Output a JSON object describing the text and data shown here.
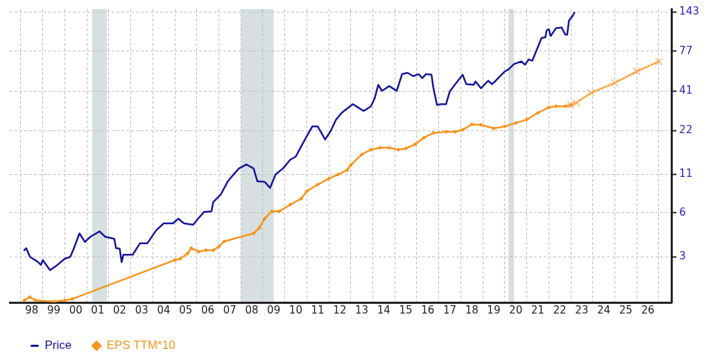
{
  "chart_data": {
    "type": "line",
    "log": true,
    "grid": true,
    "legend": "bottom left",
    "xlim": [
      "1997-07",
      "2027-08"
    ],
    "xticks": [
      {
        "value": "1998",
        "label": null
      },
      {
        "value": "1998-07",
        "label": "98"
      },
      {
        "value": "1999",
        "label": null
      },
      {
        "value": "1999-07",
        "label": "99"
      },
      {
        "value": "2000",
        "label": null
      },
      {
        "value": "2000-07",
        "label": "00"
      },
      {
        "value": "2001",
        "label": null
      },
      {
        "value": "2001-07",
        "label": "01"
      },
      {
        "value": "2002",
        "label": null
      },
      {
        "value": "2002-07",
        "label": "02"
      },
      {
        "value": "2003",
        "label": null
      },
      {
        "value": "2003-07",
        "label": "03"
      },
      {
        "value": "2004",
        "label": null
      },
      {
        "value": "2004-07",
        "label": "04"
      },
      {
        "value": "2005",
        "label": null
      },
      {
        "value": "2005-07",
        "label": "05"
      },
      {
        "value": "2006",
        "label": null
      },
      {
        "value": "2006-07",
        "label": "06"
      },
      {
        "value": "2007",
        "label": null
      },
      {
        "value": "2007-07",
        "label": "07"
      },
      {
        "value": "2008",
        "label": null
      },
      {
        "value": "2008-07",
        "label": "08"
      },
      {
        "value": "2009",
        "label": null
      },
      {
        "value": "2009-07",
        "label": "09"
      },
      {
        "value": "2010",
        "label": null
      },
      {
        "value": "2010-07",
        "label": "10"
      },
      {
        "value": "2011",
        "label": null
      },
      {
        "value": "2011-07",
        "label": "11"
      },
      {
        "value": "2012",
        "label": null
      },
      {
        "value": "2012-07",
        "label": "12"
      },
      {
        "value": "2013",
        "label": null
      },
      {
        "value": "2013-07",
        "label": "13"
      },
      {
        "value": "2014",
        "label": null
      },
      {
        "value": "2014-07",
        "label": "14"
      },
      {
        "value": "2015",
        "label": null
      },
      {
        "value": "2015-07",
        "label": "15"
      },
      {
        "value": "2016",
        "label": null
      },
      {
        "value": "2016-07",
        "label": "16"
      },
      {
        "value": "2017",
        "label": null
      },
      {
        "value": "2017-07",
        "label": "17"
      },
      {
        "value": "2018",
        "label": null
      },
      {
        "value": "2018-07",
        "label": "18"
      },
      {
        "value": "2019",
        "label": null
      },
      {
        "value": "2019-07",
        "label": "19"
      },
      {
        "value": "2020",
        "label": null
      },
      {
        "value": "2020-07",
        "label": "20"
      },
      {
        "value": "2021",
        "label": null
      },
      {
        "value": "2021-07",
        "label": "21"
      },
      {
        "value": "2022",
        "label": null
      },
      {
        "value": "2022-07",
        "label": "22"
      },
      {
        "value": "2023",
        "label": null
      },
      {
        "value": "2023-07",
        "label": "23"
      },
      {
        "value": "2024",
        "label": null
      },
      {
        "value": "2024-07",
        "label": "24"
      },
      {
        "value": "2025",
        "label": null
      },
      {
        "value": "2025-07",
        "label": "25"
      },
      {
        "value": "2026",
        "label": null
      },
      {
        "value": "2026-07",
        "label": "26"
      },
      {
        "value": "2027",
        "label": null
      }
    ],
    "ylim": [
      1.46,
      150
    ],
    "yticks": [
      3,
      6,
      11,
      22,
      41,
      77,
      143
    ],
    "bands": [
      {
        "axis": "x",
        "from": "2001-04",
        "to": "2001-12",
        "color": "#d6e0e1"
      },
      {
        "axis": "x",
        "from": "2008-01",
        "to": "2009-07",
        "color": "#d6e0e1"
      },
      {
        "axis": "x",
        "from": "2020-03",
        "to": "2020-06",
        "color": "#d6e0e1"
      }
    ],
    "series": [
      {
        "name": "Price",
        "color": "#14149a",
        "marker": "none",
        "line_style": "solid",
        "x": [
          "1998-03",
          "1998-04",
          "1998-06",
          "1998-10",
          "1998-12",
          "1999-01",
          "1999-05",
          "1999-09",
          "2000-01",
          "2000-04",
          "2000-06",
          "2000-09",
          "2000-12",
          "2001-03",
          "2001-08",
          "2001-11",
          "2002-04",
          "2002-05",
          "2002-07",
          "2002-08",
          "2002-09",
          "2003-02",
          "2003-06",
          "2003-10",
          "2004-03",
          "2004-07",
          "2004-12",
          "2005-03",
          "2005-06",
          "2005-11",
          "2006-02",
          "2006-05",
          "2006-09",
          "2006-10",
          "2007-02",
          "2007-06",
          "2007-09",
          "2007-12",
          "2008-04",
          "2008-08",
          "2008-10",
          "2009-02",
          "2009-05",
          "2009-08",
          "2009-12",
          "2010-04",
          "2010-07",
          "2010-09",
          "2010-12",
          "2011-04",
          "2011-07",
          "2011-11",
          "2012-02",
          "2012-05",
          "2012-08",
          "2013-02",
          "2013-05",
          "2013-08",
          "2013-12",
          "2014-02",
          "2014-04",
          "2014-06",
          "2014-10",
          "2015-02",
          "2015-05",
          "2015-08",
          "2015-11",
          "2016-02",
          "2016-04",
          "2016-06",
          "2016-09",
          "2016-10",
          "2016-12",
          "2017-02",
          "2017-05",
          "2017-07",
          "2017-10",
          "2018-02",
          "2018-04",
          "2018-08",
          "2018-09",
          "2018-12",
          "2019-04",
          "2019-06",
          "2019-08",
          "2020-01",
          "2020-03",
          "2020-06",
          "2020-10",
          "2020-12",
          "2021-02",
          "2021-04",
          "2021-07",
          "2021-09",
          "2021-11-05",
          "2021-11-25",
          "2022-01",
          "2022-02",
          "2022-05",
          "2022-08",
          "2022-10",
          "2022-11",
          "2022-12",
          "2023-02",
          "2023-03"
        ],
        "values": [
          3.33,
          3.44,
          3.0,
          2.79,
          2.64,
          2.85,
          2.43,
          2.64,
          2.91,
          3.0,
          3.44,
          4.34,
          3.79,
          4.12,
          4.48,
          4.12,
          3.99,
          3.44,
          3.41,
          2.76,
          3.1,
          3.1,
          3.71,
          3.71,
          4.58,
          5.09,
          5.09,
          5.48,
          5.09,
          4.98,
          5.54,
          6.09,
          6.15,
          7.13,
          8.01,
          9.9,
          11.0,
          12.1,
          12.9,
          12.1,
          9.9,
          9.8,
          8.91,
          11.0,
          12.1,
          13.9,
          14.6,
          16.3,
          19.1,
          23.5,
          23.5,
          19.1,
          21.9,
          26.2,
          29.1,
          33.4,
          31.7,
          30.0,
          32.3,
          36.7,
          45.3,
          41.2,
          44.4,
          41.2,
          53.7,
          54.8,
          52.0,
          53.7,
          50.4,
          53.7,
          53.1,
          43.5,
          33.0,
          33.4,
          33.4,
          40.8,
          45.8,
          53.1,
          45.8,
          45.3,
          47.8,
          43.0,
          48.3,
          45.8,
          48.3,
          56.0,
          57.8,
          62.9,
          65.6,
          62.2,
          67.7,
          66.3,
          81.9,
          95.0,
          96.0,
          107,
          109,
          98.0,
          111,
          112,
          100,
          100,
          125,
          135,
          142
        ]
      },
      {
        "name": "EPS TTM*10",
        "color": "#f7941d",
        "marker": "diamond",
        "line_style": "solid",
        "x": [
          "1998-03",
          "1998-06",
          "1998-09",
          "1999-07",
          "2000-01",
          "2000-05",
          "2005-01",
          "2005-04",
          "2005-08",
          "2005-10",
          "2006-02",
          "2006-06",
          "2006-10",
          "2007-01",
          "2007-04",
          "2008-08",
          "2008-11",
          "2009-02",
          "2009-06",
          "2009-10",
          "2010-04",
          "2010-10",
          "2011-01",
          "2011-07",
          "2012-01",
          "2012-06",
          "2012-11",
          "2013-01",
          "2013-07",
          "2013-12",
          "2014-05",
          "2014-10",
          "2015-03",
          "2015-07",
          "2015-12",
          "2016-05",
          "2016-10",
          "2017-05",
          "2017-10",
          "2018-02",
          "2018-07",
          "2018-12",
          "2019-07",
          "2020-01",
          "2020-07",
          "2021-01",
          "2021-07",
          "2022-01",
          "2022-05",
          "2022-10",
          "2023-01"
        ],
        "values": [
          1.51,
          1.59,
          1.51,
          1.48,
          1.51,
          1.54,
          2.85,
          2.91,
          3.16,
          3.44,
          3.26,
          3.33,
          3.33,
          3.52,
          3.83,
          4.34,
          4.73,
          5.48,
          6.15,
          6.15,
          6.84,
          7.52,
          8.45,
          9.39,
          10.3,
          11.0,
          11.8,
          12.8,
          15.1,
          16.3,
          16.8,
          16.8,
          16.3,
          16.6,
          17.7,
          19.7,
          21.2,
          21.6,
          21.6,
          22.3,
          24.3,
          24.1,
          22.8,
          23.5,
          24.8,
          26.2,
          29.1,
          31.7,
          32.3,
          32.3,
          33.0
        ]
      },
      {
        "color": "#f9a94c",
        "marker": "cross",
        "line_style": "dotted",
        "x": [
          "2023-01",
          "2023-04",
          "2023-12",
          "2025-01",
          "2026-01",
          "2027-01"
        ],
        "values": [
          33.0,
          34.1,
          39.9,
          46.8,
          56.0,
          65.6
        ]
      }
    ]
  }
}
